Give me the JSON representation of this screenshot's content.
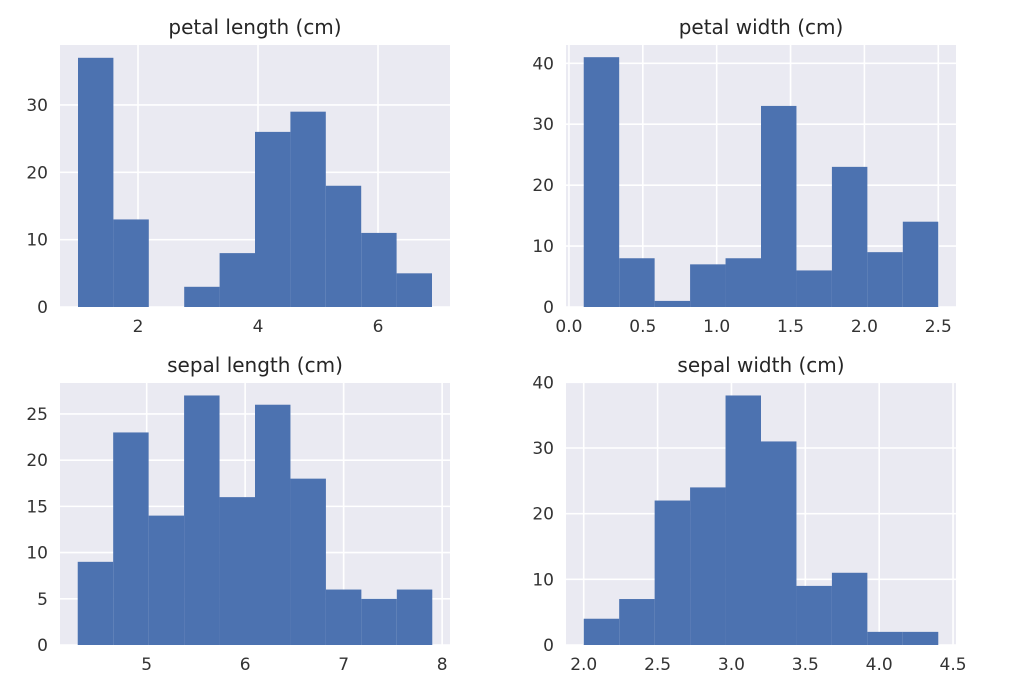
{
  "chart_data": [
    {
      "type": "bar",
      "title": "petal length (cm)",
      "xlabel": "",
      "ylabel": "",
      "bin_edges": [
        1.0,
        1.59,
        2.18,
        2.77,
        3.36,
        3.95,
        4.54,
        5.13,
        5.72,
        6.31,
        6.9
      ],
      "values": [
        37,
        13,
        0,
        3,
        8,
        26,
        29,
        18,
        11,
        5
      ],
      "xlim": [
        0.7,
        7.2
      ],
      "ylim": [
        0,
        38.9
      ],
      "xticks": [
        2,
        4,
        6
      ],
      "xtick_labels": [
        "2",
        "4",
        "6"
      ],
      "yticks": [
        0,
        10,
        20,
        30
      ],
      "ytick_labels": [
        "0",
        "10",
        "20",
        "30"
      ],
      "grid": true
    },
    {
      "type": "bar",
      "title": "petal width (cm)",
      "xlabel": "",
      "ylabel": "",
      "bin_edges": [
        0.1,
        0.34,
        0.58,
        0.82,
        1.06,
        1.3,
        1.54,
        1.78,
        2.02,
        2.26,
        2.5
      ],
      "values": [
        41,
        8,
        1,
        7,
        8,
        33,
        6,
        23,
        9,
        14
      ],
      "xlim": [
        -0.02,
        2.62
      ],
      "ylim": [
        0,
        43
      ],
      "xticks": [
        0.0,
        0.5,
        1.0,
        1.5,
        2.0,
        2.5
      ],
      "xtick_labels": [
        "0.0",
        "0.5",
        "1.0",
        "1.5",
        "2.0",
        "2.5"
      ],
      "yticks": [
        0,
        10,
        20,
        30,
        40
      ],
      "ytick_labels": [
        "0",
        "10",
        "20",
        "30",
        "40"
      ],
      "grid": true
    },
    {
      "type": "bar",
      "title": "sepal length (cm)",
      "xlabel": "",
      "ylabel": "",
      "bin_edges": [
        4.3,
        4.66,
        5.02,
        5.38,
        5.74,
        6.1,
        6.46,
        6.82,
        7.18,
        7.54,
        7.9
      ],
      "values": [
        9,
        23,
        14,
        27,
        16,
        26,
        18,
        6,
        5,
        6
      ],
      "xlim": [
        4.12,
        8.08
      ],
      "ylim": [
        0,
        28.35
      ],
      "xticks": [
        5,
        6,
        7,
        8
      ],
      "xtick_labels": [
        "5",
        "6",
        "7",
        "8"
      ],
      "yticks": [
        0,
        5,
        10,
        15,
        20,
        25
      ],
      "ytick_labels": [
        "0",
        "5",
        "10",
        "15",
        "20",
        "25"
      ],
      "grid": true
    },
    {
      "type": "bar",
      "title": "sepal width (cm)",
      "xlabel": "",
      "ylabel": "",
      "bin_edges": [
        2.0,
        2.24,
        2.48,
        2.72,
        2.96,
        3.2,
        3.44,
        3.68,
        3.92,
        4.16,
        4.4
      ],
      "values": [
        4,
        7,
        22,
        24,
        38,
        31,
        9,
        11,
        2,
        2
      ],
      "xlim": [
        1.88,
        4.52
      ],
      "ylim": [
        0,
        39.9
      ],
      "xticks": [
        2.0,
        2.5,
        3.0,
        3.5,
        4.0,
        4.5
      ],
      "xtick_labels": [
        "2.0",
        "2.5",
        "3.0",
        "3.5",
        "4.0",
        "4.5"
      ],
      "yticks": [
        0,
        10,
        20,
        30,
        40
      ],
      "ytick_labels": [
        "0",
        "10",
        "20",
        "30",
        "40"
      ],
      "grid": true
    }
  ],
  "colors": {
    "bar": "#4c72b0",
    "plot_background": "#eaeaf2",
    "grid": "#ffffff"
  }
}
